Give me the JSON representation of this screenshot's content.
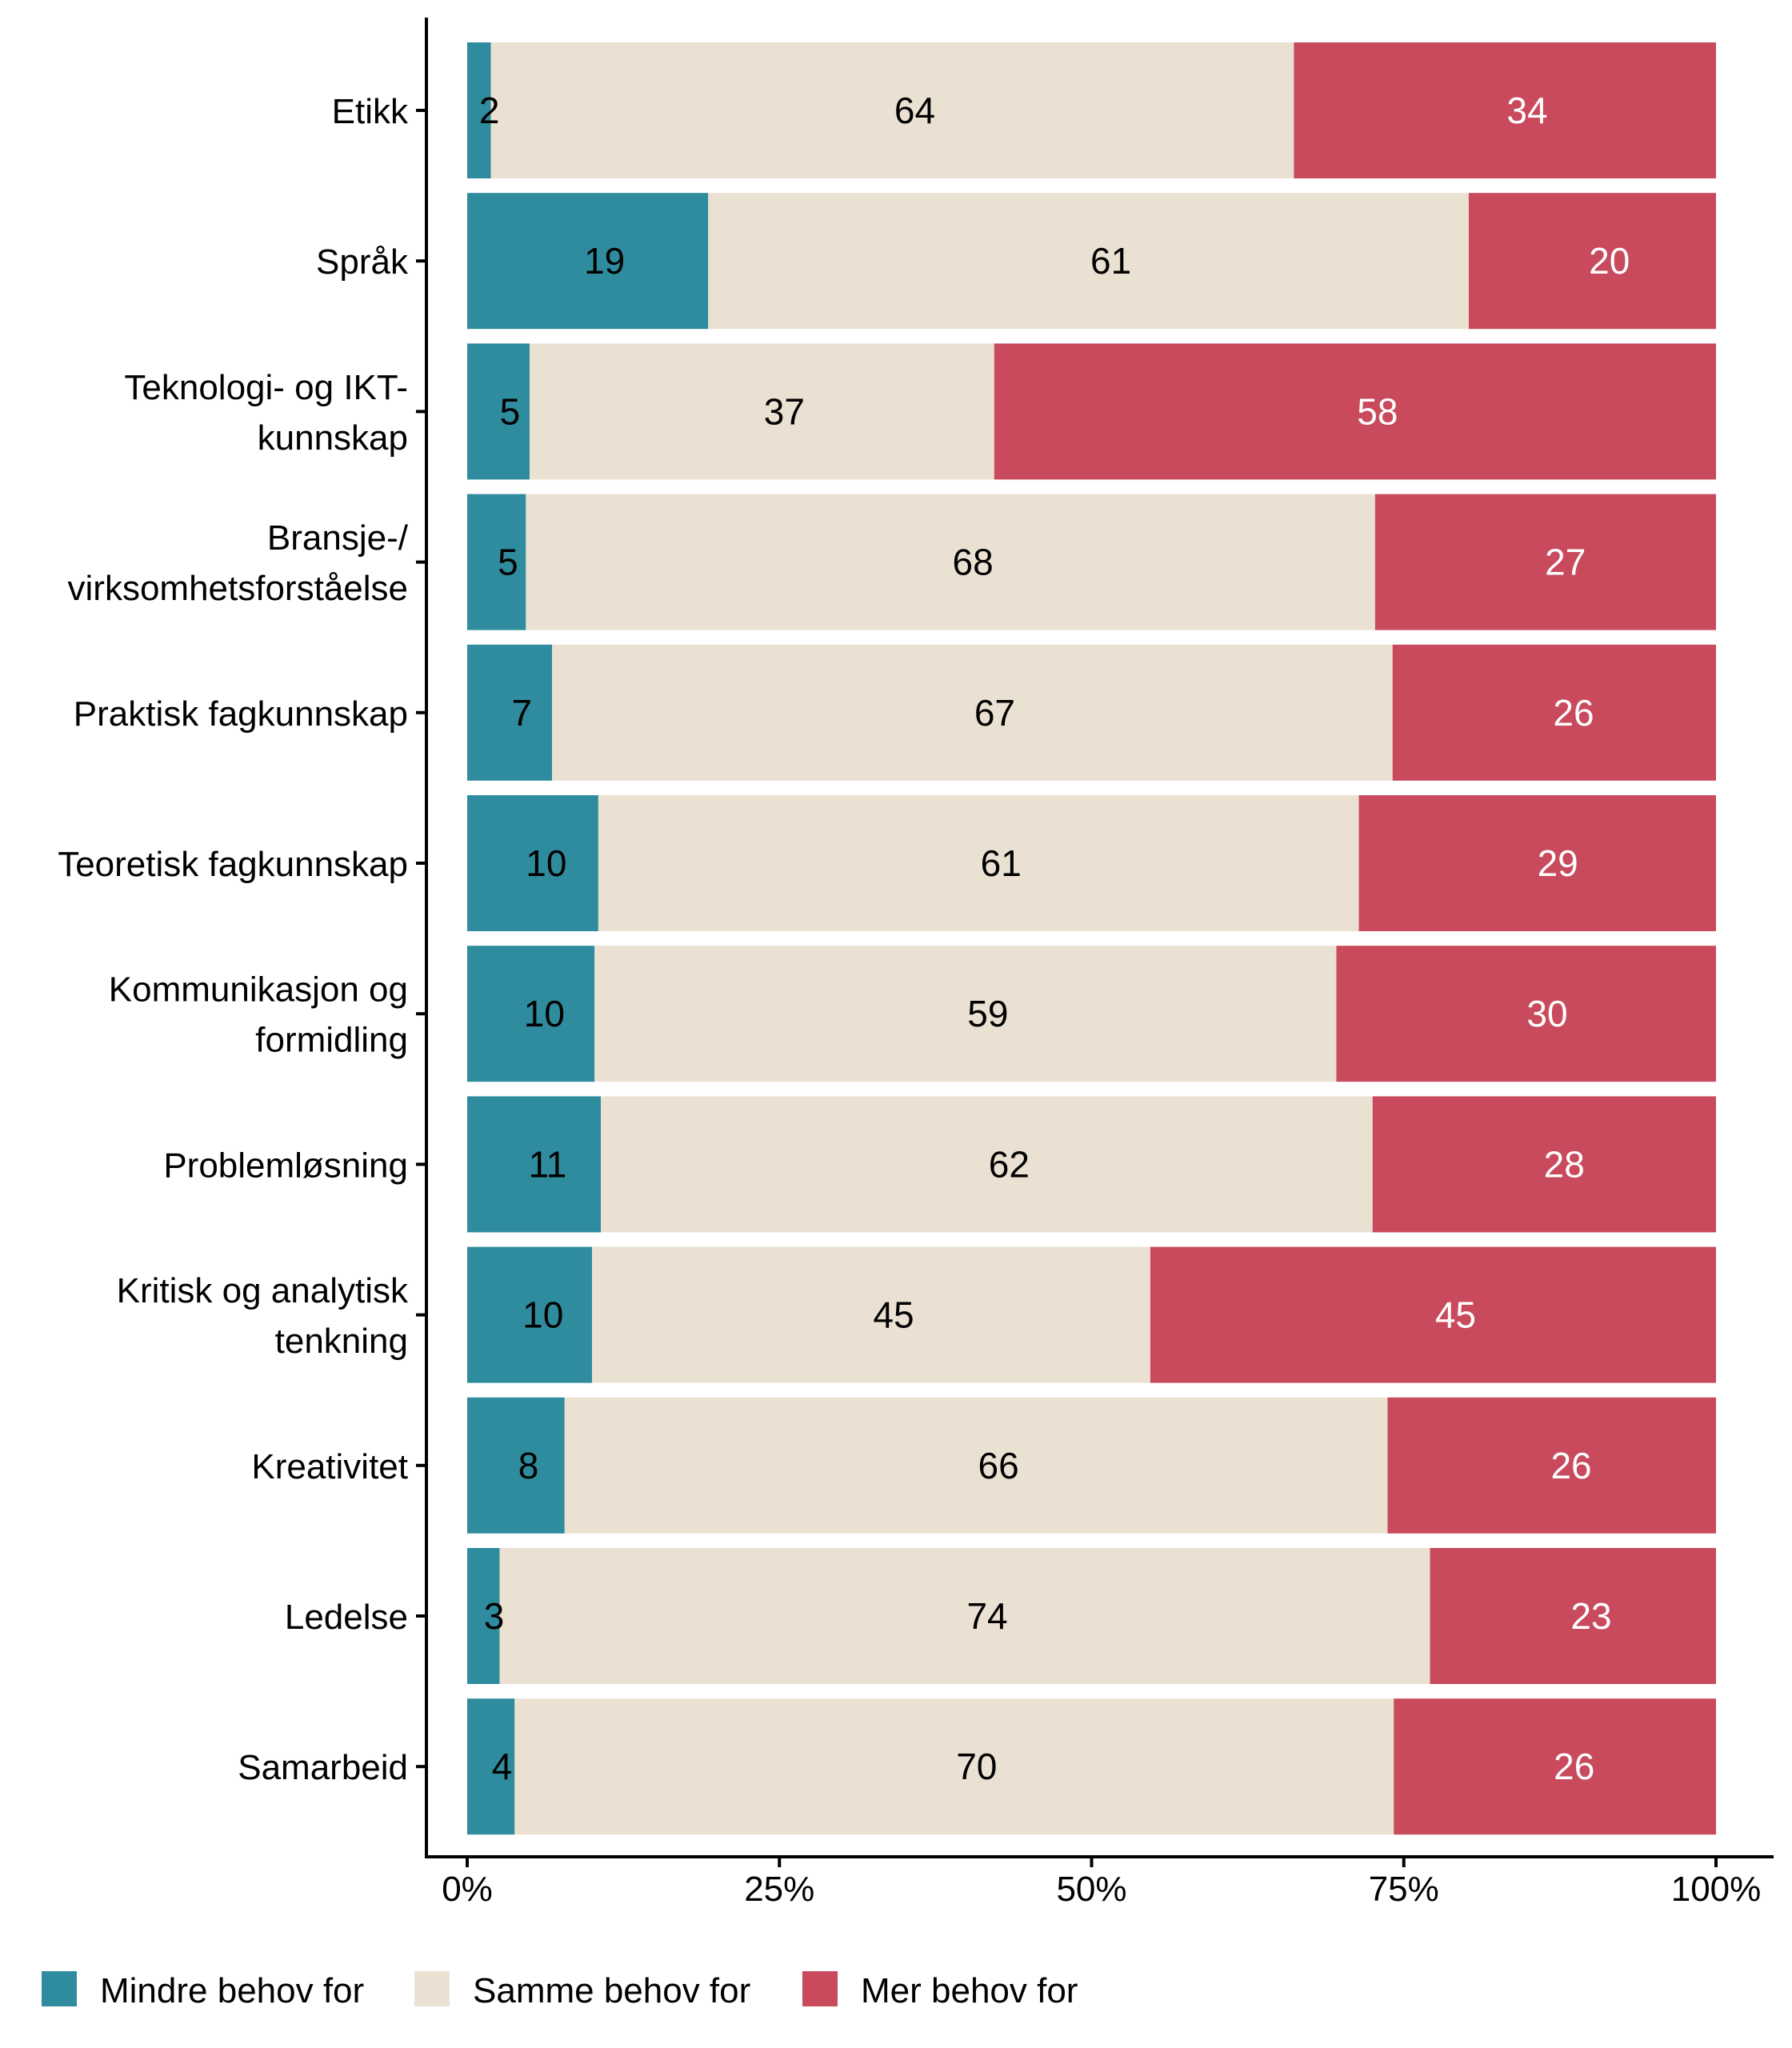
{
  "chart_data": {
    "type": "bar",
    "orientation": "horizontal",
    "stacked": true,
    "percent": true,
    "title": "",
    "xlabel": "",
    "ylabel": "",
    "xlim": [
      0,
      100
    ],
    "x_ticks": [
      "0%",
      "25%",
      "50%",
      "75%",
      "100%"
    ],
    "grid": false,
    "legend_position": "bottom-left",
    "categories": [
      "Etikk",
      "Språk",
      "Teknologi- og IKT-\nkunnskap",
      "Bransje-/\nvirksomhetsforståelse",
      "Praktisk fagkunnskap",
      "Teoretisk fagkunnskap",
      "Kommunikasjon og\nformidling",
      "Problemløsning",
      "Kritisk og analytisk\ntenkning",
      "Kreativitet",
      "Ledelse",
      "Samarbeid"
    ],
    "series": [
      {
        "name": "Mindre behov for",
        "color": "#2E8C9E",
        "label_color": "#000000",
        "values": [
          1.9,
          19.3,
          5.0,
          4.7,
          6.8,
          10.5,
          10.2,
          10.7,
          10.0,
          7.8,
          2.6,
          3.8
        ],
        "labels": [
          "2",
          "19",
          "5",
          "5",
          "7",
          "10",
          "10",
          "11",
          "10",
          "8",
          "3",
          "4"
        ]
      },
      {
        "name": "Samme behov for",
        "color": "#EBE1D3",
        "label_color": "#000000",
        "values": [
          64.3,
          60.9,
          37.2,
          68.0,
          67.3,
          60.9,
          59.4,
          61.8,
          44.7,
          65.9,
          74.5,
          70.4
        ],
        "labels": [
          "64",
          "61",
          "37",
          "68",
          "67",
          "61",
          "59",
          "62",
          "45",
          "66",
          "74",
          "70"
        ]
      },
      {
        "name": "Mer behov for",
        "color": "#C84A5C",
        "label_color": "#FFFFFF",
        "values": [
          33.8,
          19.8,
          57.8,
          27.3,
          25.9,
          28.6,
          30.4,
          27.5,
          45.3,
          26.3,
          22.9,
          25.8
        ],
        "labels": [
          "34",
          "20",
          "58",
          "27",
          "26",
          "29",
          "30",
          "28",
          "45",
          "26",
          "23",
          "26"
        ]
      }
    ]
  }
}
